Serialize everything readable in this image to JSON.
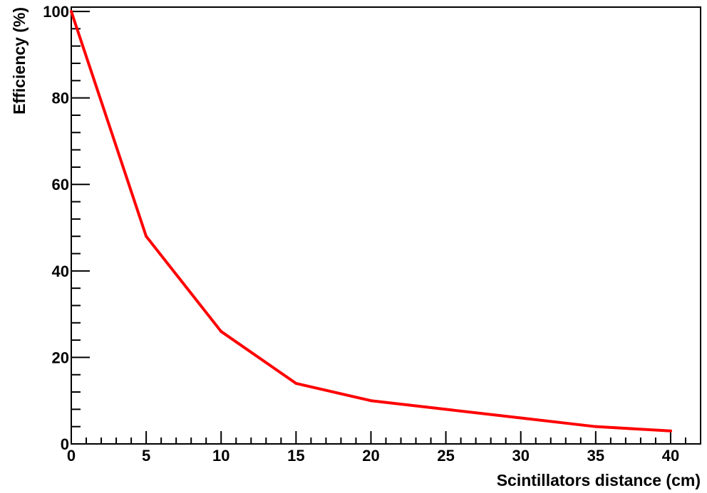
{
  "chart_data": {
    "type": "line",
    "xlabel": "Scintillators distance (cm)",
    "ylabel": "Efficiency (%)",
    "xlim": [
      0,
      42
    ],
    "ylim": [
      0,
      101
    ],
    "x_ticks": [
      0,
      5,
      10,
      15,
      20,
      25,
      30,
      35,
      40
    ],
    "y_ticks": [
      0,
      20,
      40,
      60,
      80,
      100
    ],
    "grid": false,
    "legend": "none",
    "series": [
      {
        "color": "#ff0000",
        "x": [
          0,
          5,
          10,
          15,
          20,
          25,
          30,
          35,
          40
        ],
        "y": [
          100,
          48,
          26,
          14,
          10,
          8,
          6,
          4,
          3
        ]
      }
    ]
  }
}
